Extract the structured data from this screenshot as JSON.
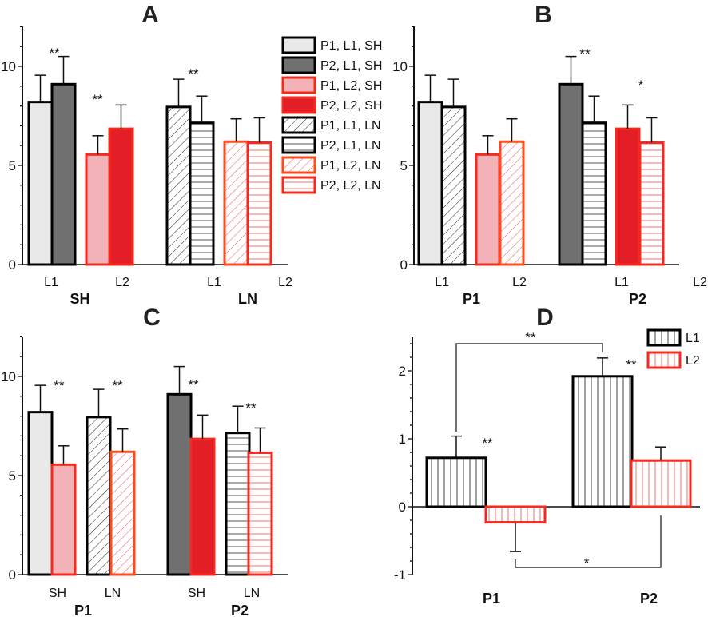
{
  "styles": {
    "P1L1SH": {
      "fill": "#e8e9e8",
      "stroke": "#000000",
      "pattern": "solid"
    },
    "P2L1SH": {
      "fill": "#707070",
      "stroke": "#000000",
      "pattern": "solid"
    },
    "P1L2SH": {
      "fill": "#f3b2b8",
      "stroke": "#f42a1e",
      "pattern": "solid"
    },
    "P2L2SH": {
      "fill": "#e31e26",
      "stroke": "#f42a1e",
      "pattern": "solid"
    },
    "P1L1LN": {
      "fill": "#ffffff",
      "stroke": "#000000",
      "pattern": "diag-black"
    },
    "P2L1LN": {
      "fill": "#ffffff",
      "stroke": "#000000",
      "pattern": "horiz-black"
    },
    "P1L2LN": {
      "fill": "#ffffff",
      "stroke": "#ff4a1a",
      "pattern": "diag-red"
    },
    "P2L2LN": {
      "fill": "#ffffff",
      "stroke": "#f42a1e",
      "pattern": "horiz-red"
    },
    "L1": {
      "fill": "#ffffff",
      "stroke": "#000000",
      "pattern": "vert-black"
    },
    "L2": {
      "fill": "#ffffff",
      "stroke": "#f42a1e",
      "pattern": "vert-red"
    }
  },
  "chart_data": [
    {
      "panel": "A",
      "type": "bar",
      "title": "A",
      "ylim": [
        0,
        12
      ],
      "yticks": [
        "0",
        "5",
        "10"
      ],
      "bars": [
        {
          "series": "P1L1SH",
          "value": 8.2,
          "error": 1.35
        },
        {
          "series": "P2L1SH",
          "value": 9.1,
          "error": 1.4
        },
        {
          "series": "P1L2SH",
          "value": 5.55,
          "error": 0.95
        },
        {
          "series": "P2L2SH",
          "value": 6.85,
          "error": 1.2
        },
        {
          "series": "P1L1LN",
          "value": 7.95,
          "error": 1.4
        },
        {
          "series": "P2L1LN",
          "value": 7.15,
          "error": 1.35
        },
        {
          "series": "P1L2LN",
          "value": 6.2,
          "error": 1.15
        },
        {
          "series": "P2L2LN",
          "value": 6.15,
          "error": 1.25
        }
      ],
      "category_labels": [
        "L1",
        "L2",
        "L1",
        "L2"
      ],
      "group_labels": [
        "SH",
        "LN"
      ],
      "annotations": [
        "**",
        "**",
        "**"
      ],
      "legend": {
        "placement": "top-right",
        "entries": [
          {
            "series": "P1L1SH",
            "label": "P1, L1, SH"
          },
          {
            "series": "P2L1SH",
            "label": "P2, L1, SH"
          },
          {
            "series": "P1L2SH",
            "label": "P1, L2, SH"
          },
          {
            "series": "P2L2SH",
            "label": "P2, L2, SH"
          },
          {
            "series": "P1L1LN",
            "label": "P1, L1, LN"
          },
          {
            "series": "P2L1LN",
            "label": "P2, L1, LN"
          },
          {
            "series": "P1L2LN",
            "label": "P1, L2, LN"
          },
          {
            "series": "P2L2LN",
            "label": "P2, L2, LN"
          }
        ]
      }
    },
    {
      "panel": "B",
      "type": "bar",
      "title": "B",
      "ylim": [
        0,
        12
      ],
      "yticks": [
        "0",
        "5",
        "10"
      ],
      "bars": [
        {
          "series": "P1L1SH",
          "value": 8.2,
          "error": 1.35
        },
        {
          "series": "P1L1LN",
          "value": 7.95,
          "error": 1.4
        },
        {
          "series": "P1L2SH",
          "value": 5.55,
          "error": 0.95
        },
        {
          "series": "P1L2LN",
          "value": 6.2,
          "error": 1.15
        },
        {
          "series": "P2L1SH",
          "value": 9.1,
          "error": 1.4
        },
        {
          "series": "P2L1LN",
          "value": 7.15,
          "error": 1.35
        },
        {
          "series": "P2L2SH",
          "value": 6.85,
          "error": 1.2
        },
        {
          "series": "P2L2LN",
          "value": 6.15,
          "error": 1.25
        }
      ],
      "category_labels": [
        "L1",
        "L2",
        "L1",
        "L2"
      ],
      "group_labels": [
        "P1",
        "P2"
      ],
      "annotations": [
        "**",
        "*"
      ]
    },
    {
      "panel": "C",
      "type": "bar",
      "title": "C",
      "ylim": [
        0,
        12
      ],
      "yticks": [
        "0",
        "5",
        "10"
      ],
      "bars": [
        {
          "series": "P1L1SH",
          "value": 8.2,
          "error": 1.35
        },
        {
          "series": "P1L2SH",
          "value": 5.55,
          "error": 0.95
        },
        {
          "series": "P1L1LN",
          "value": 7.95,
          "error": 1.4
        },
        {
          "series": "P1L2LN",
          "value": 6.2,
          "error": 1.15
        },
        {
          "series": "P2L1SH",
          "value": 9.1,
          "error": 1.4
        },
        {
          "series": "P2L2SH",
          "value": 6.85,
          "error": 1.2
        },
        {
          "series": "P2L1LN",
          "value": 7.15,
          "error": 1.35
        },
        {
          "series": "P2L2LN",
          "value": 6.15,
          "error": 1.25
        }
      ],
      "category_labels": [
        "SH",
        "LN",
        "SH",
        "LN"
      ],
      "group_labels": [
        "P1",
        "P2"
      ],
      "annotations": [
        "**",
        "**",
        "**",
        "**"
      ]
    },
    {
      "panel": "D",
      "type": "bar",
      "title": "D",
      "ylim": [
        -1,
        2.5
      ],
      "yticks": [
        "-1",
        "0",
        "1",
        "2"
      ],
      "bars": [
        {
          "series": "L1",
          "value": 0.72,
          "error": 0.32
        },
        {
          "series": "L2",
          "value": -0.23,
          "error": 0.43
        },
        {
          "series": "L1",
          "value": 1.92,
          "error": 0.27
        },
        {
          "series": "L2",
          "value": 0.68,
          "error": 0.2
        }
      ],
      "group_labels": [
        "P1",
        "P2"
      ],
      "annotations": [
        "**",
        "**"
      ],
      "brackets": [
        {
          "from_bar": 0,
          "to_bar": 2,
          "text": "**"
        },
        {
          "from_bar": 1,
          "to_bar": 3,
          "text": "*"
        }
      ],
      "legend": {
        "placement": "top-right",
        "entries": [
          {
            "series": "L1",
            "label": "L1"
          },
          {
            "series": "L2",
            "label": "L2"
          }
        ]
      }
    }
  ]
}
